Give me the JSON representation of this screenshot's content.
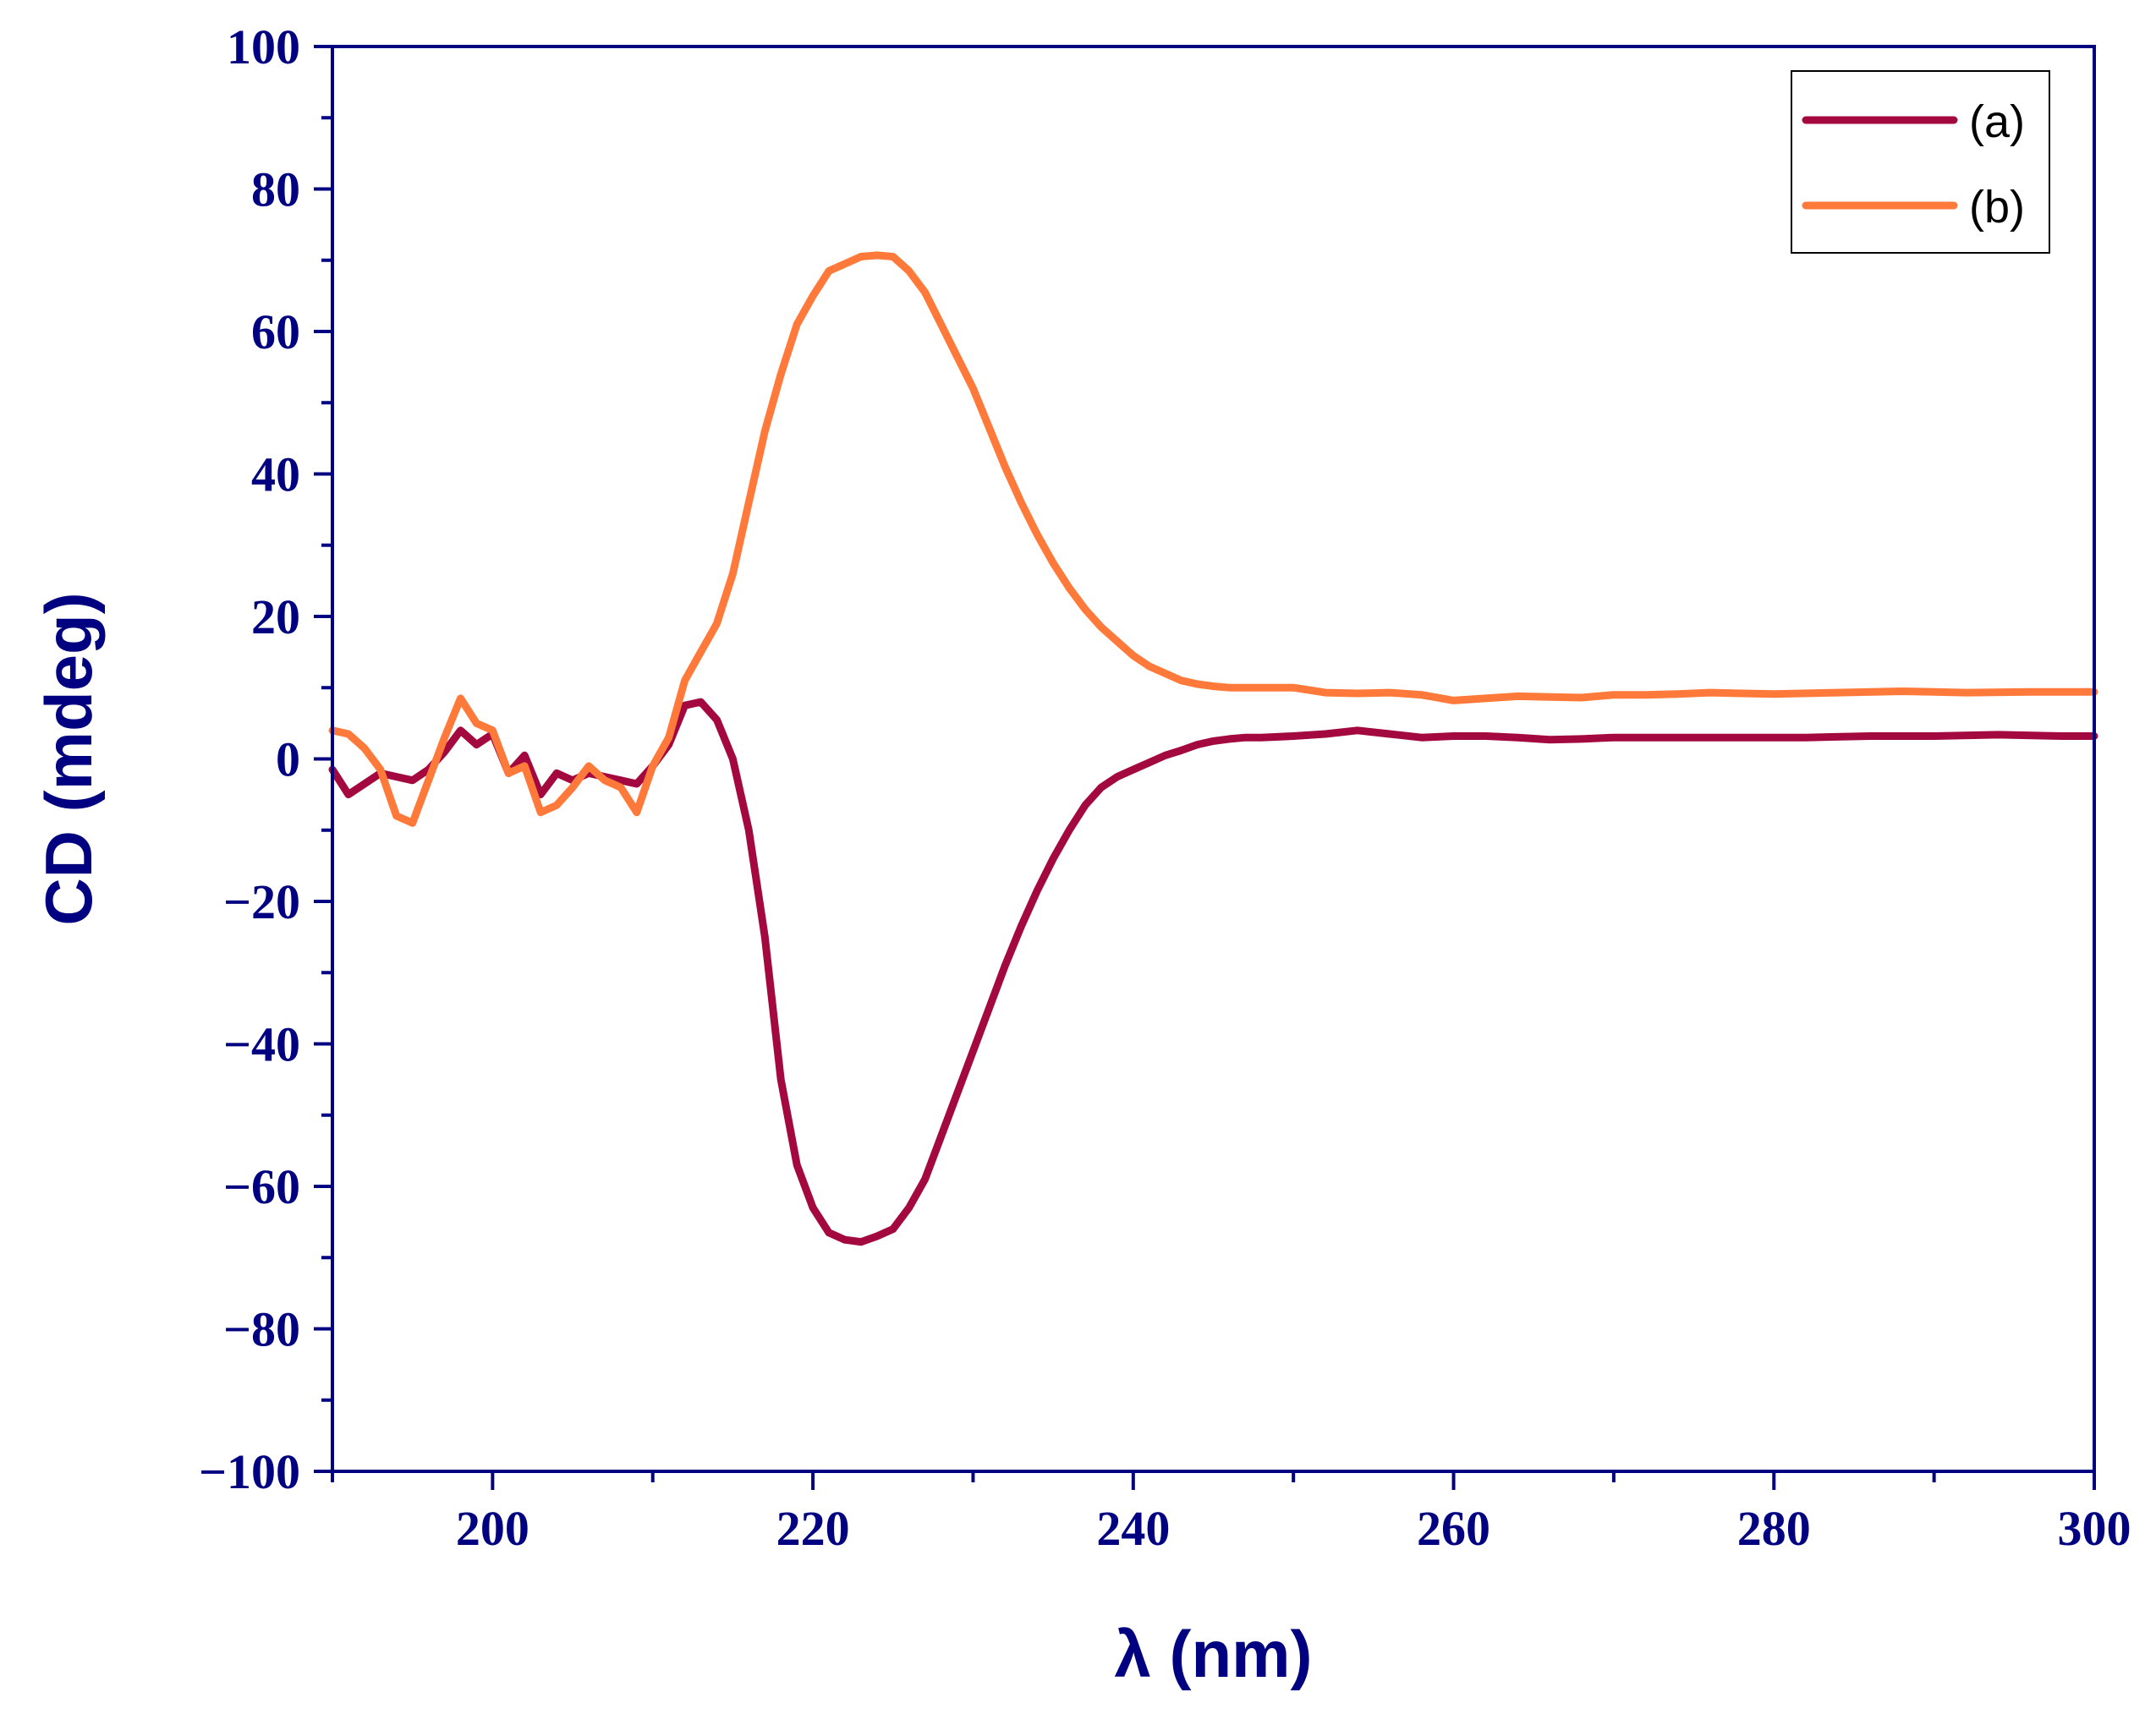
{
  "colors": {
    "axis": "#000080",
    "series_a": "#A3093F",
    "series_b": "#FF7A3A",
    "legend_border": "#000000"
  },
  "chart_data": {
    "type": "line",
    "title": "",
    "xlabel": "λ (nm)",
    "ylabel": "CD (mdeg)",
    "xlim": [
      190,
      300
    ],
    "ylim": [
      -100,
      100
    ],
    "xticks": [
      200,
      220,
      240,
      260,
      280,
      300
    ],
    "xtick_labels": [
      "200",
      "220",
      "240",
      "260",
      "280",
      "300"
    ],
    "yticks": [
      100,
      80,
      60,
      40,
      20,
      0,
      -20,
      -40,
      -60,
      -80,
      -100
    ],
    "ytick_labels": [
      "100",
      "80",
      "60",
      "40",
      "20",
      "0",
      "−20",
      "−40",
      "−60",
      "−80",
      "−100"
    ],
    "legend_position": "top-right",
    "grid": false,
    "series": [
      {
        "name": "(a)",
        "points": [
          [
            190,
            -1.5
          ],
          [
            191,
            -5
          ],
          [
            192,
            -3.5
          ],
          [
            193,
            -2
          ],
          [
            194,
            -2.5
          ],
          [
            195,
            -3
          ],
          [
            196,
            -1.5
          ],
          [
            197,
            1
          ],
          [
            198,
            4
          ],
          [
            199,
            2
          ],
          [
            200,
            3.5
          ],
          [
            201,
            -2
          ],
          [
            202,
            0.5
          ],
          [
            203,
            -5
          ],
          [
            204,
            -2
          ],
          [
            205,
            -3
          ],
          [
            206,
            -2
          ],
          [
            207,
            -2.5
          ],
          [
            208,
            -3
          ],
          [
            209,
            -3.5
          ],
          [
            210,
            -1
          ],
          [
            211,
            2
          ],
          [
            212,
            7.5
          ],
          [
            213,
            8
          ],
          [
            214,
            5.5
          ],
          [
            215,
            0
          ],
          [
            216,
            -10
          ],
          [
            217,
            -25
          ],
          [
            218,
            -45
          ],
          [
            219,
            -57
          ],
          [
            220,
            -63
          ],
          [
            221,
            -66.5
          ],
          [
            222,
            -67.5
          ],
          [
            223,
            -67.8
          ],
          [
            224,
            -67
          ],
          [
            225,
            -66
          ],
          [
            226,
            -63
          ],
          [
            227,
            -59
          ],
          [
            228,
            -53
          ],
          [
            229,
            -47
          ],
          [
            230,
            -41
          ],
          [
            231,
            -35
          ],
          [
            232,
            -29
          ],
          [
            233,
            -23.5
          ],
          [
            234,
            -18.5
          ],
          [
            235,
            -14
          ],
          [
            236,
            -10
          ],
          [
            237,
            -6.5
          ],
          [
            238,
            -4
          ],
          [
            239,
            -2.5
          ],
          [
            240,
            -1.5
          ],
          [
            241,
            -0.5
          ],
          [
            242,
            0.5
          ],
          [
            243,
            1.2
          ],
          [
            244,
            2
          ],
          [
            245,
            2.5
          ],
          [
            246,
            2.8
          ],
          [
            247,
            3
          ],
          [
            248,
            3
          ],
          [
            250,
            3.2
          ],
          [
            252,
            3.5
          ],
          [
            254,
            4
          ],
          [
            256,
            3.5
          ],
          [
            258,
            3
          ],
          [
            260,
            3.2
          ],
          [
            262,
            3.2
          ],
          [
            264,
            3
          ],
          [
            266,
            2.7
          ],
          [
            268,
            2.8
          ],
          [
            270,
            3
          ],
          [
            274,
            3
          ],
          [
            278,
            3
          ],
          [
            282,
            3
          ],
          [
            286,
            3.2
          ],
          [
            290,
            3.2
          ],
          [
            294,
            3.4
          ],
          [
            298,
            3.2
          ],
          [
            300,
            3.2
          ]
        ]
      },
      {
        "name": "(b)",
        "points": [
          [
            190,
            4
          ],
          [
            191,
            3.5
          ],
          [
            192,
            1.5
          ],
          [
            193,
            -1.5
          ],
          [
            194,
            -8
          ],
          [
            195,
            -9
          ],
          [
            196,
            -3
          ],
          [
            197,
            3
          ],
          [
            198,
            8.5
          ],
          [
            199,
            5
          ],
          [
            200,
            4
          ],
          [
            201,
            -2
          ],
          [
            202,
            -1
          ],
          [
            203,
            -7.5
          ],
          [
            204,
            -6.5
          ],
          [
            205,
            -4
          ],
          [
            206,
            -1
          ],
          [
            207,
            -3
          ],
          [
            208,
            -4
          ],
          [
            209,
            -7.5
          ],
          [
            210,
            -1
          ],
          [
            211,
            3
          ],
          [
            212,
            11
          ],
          [
            213,
            15
          ],
          [
            214,
            19
          ],
          [
            215,
            26
          ],
          [
            216,
            36
          ],
          [
            217,
            46
          ],
          [
            218,
            54
          ],
          [
            219,
            61
          ],
          [
            220,
            65
          ],
          [
            221,
            68.5
          ],
          [
            222,
            69.5
          ],
          [
            223,
            70.5
          ],
          [
            224,
            70.7
          ],
          [
            225,
            70.5
          ],
          [
            226,
            68.5
          ],
          [
            227,
            65.5
          ],
          [
            228,
            61
          ],
          [
            229,
            56.5
          ],
          [
            230,
            52
          ],
          [
            231,
            46.5
          ],
          [
            232,
            41
          ],
          [
            233,
            36
          ],
          [
            234,
            31.5
          ],
          [
            235,
            27.5
          ],
          [
            236,
            24
          ],
          [
            237,
            21
          ],
          [
            238,
            18.5
          ],
          [
            239,
            16.5
          ],
          [
            240,
            14.5
          ],
          [
            241,
            13
          ],
          [
            242,
            12
          ],
          [
            243,
            11
          ],
          [
            244,
            10.5
          ],
          [
            245,
            10.2
          ],
          [
            246,
            10
          ],
          [
            248,
            10
          ],
          [
            250,
            10
          ],
          [
            252,
            9.3
          ],
          [
            254,
            9.2
          ],
          [
            256,
            9.3
          ],
          [
            258,
            9
          ],
          [
            260,
            8.2
          ],
          [
            262,
            8.5
          ],
          [
            264,
            8.8
          ],
          [
            266,
            8.7
          ],
          [
            268,
            8.6
          ],
          [
            270,
            9
          ],
          [
            272,
            9
          ],
          [
            274,
            9.1
          ],
          [
            276,
            9.3
          ],
          [
            278,
            9.2
          ],
          [
            280,
            9.1
          ],
          [
            284,
            9.3
          ],
          [
            288,
            9.5
          ],
          [
            292,
            9.3
          ],
          [
            296,
            9.4
          ],
          [
            300,
            9.4
          ]
        ]
      }
    ]
  }
}
